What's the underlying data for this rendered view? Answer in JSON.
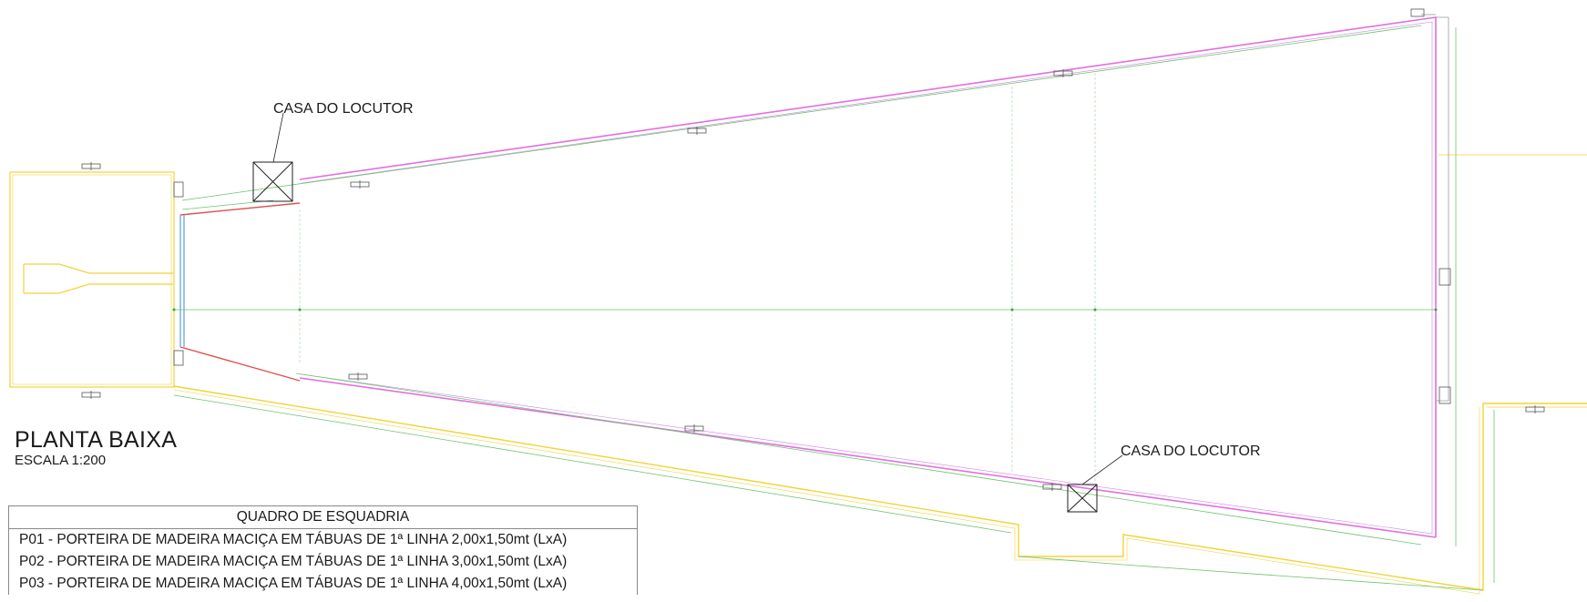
{
  "labels": {
    "booth_top": "CASA DO LOCUTOR",
    "booth_bottom": "CASA DO LOCUTOR"
  },
  "title": {
    "name": "PLANTA BAIXA",
    "scale": "ESCALA 1:200"
  },
  "schedule": {
    "header": "QUADRO DE ESQUADRIA",
    "rows": [
      "P01 - PORTEIRA DE MADEIRA MACIÇA EM TÁBUAS DE 1ª LINHA 2,00x1,50mt (LxA)",
      "P02 - PORTEIRA DE MADEIRA MACIÇA EM TÁBUAS DE 1ª LINHA 3,00x1,50mt (LxA)",
      "P03 - PORTEIRA DE MADEIRA MACIÇA EM TÁBUAS DE 1ª LINHA 4,00x1,50mt (LxA)"
    ]
  },
  "colors": {
    "wall_magenta": "#e070e0",
    "wall_red": "#e05050",
    "dimension_green": "#6cc36c",
    "fence_yellow": "#f2d23a",
    "structure_gray": "#9a9a9a",
    "booth_black": "#222222",
    "door_blue": "#7fb2e0"
  }
}
